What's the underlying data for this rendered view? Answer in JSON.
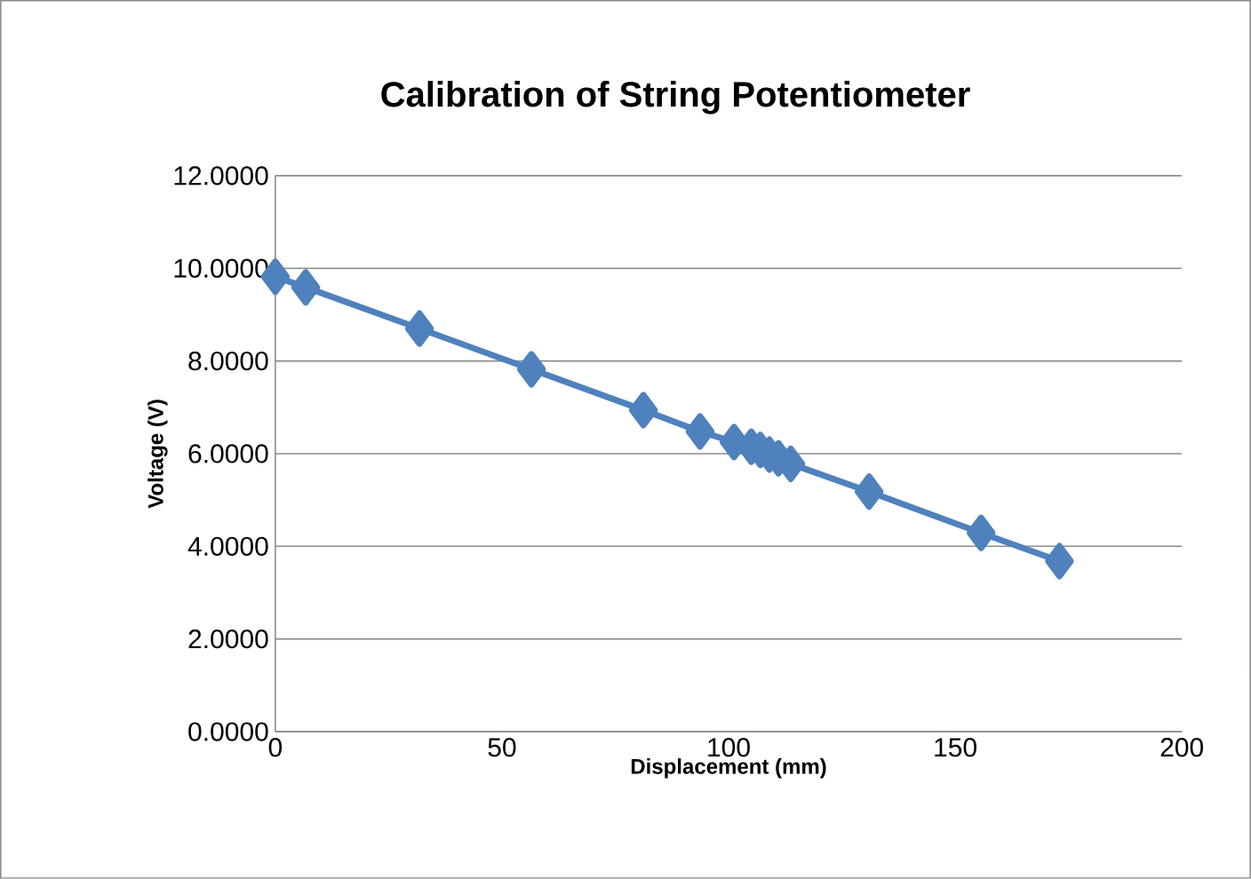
{
  "chart_data": {
    "type": "line",
    "title": "Calibration of String Potentiometer",
    "xlabel": "Displacement (mm)",
    "ylabel": "Voltage (V)",
    "x": [
      0,
      6.7,
      31.8,
      56.5,
      81.2,
      93.7,
      101.2,
      105,
      107,
      109,
      111,
      113.7,
      131,
      155.7,
      173
    ],
    "series": [
      {
        "color": "#4f81bd",
        "values": [
          9.82,
          9.59,
          8.7,
          7.82,
          6.94,
          6.48,
          6.25,
          6.15,
          6.08,
          5.98,
          5.9,
          5.78,
          5.18,
          4.29,
          3.68
        ]
      }
    ],
    "xlim": [
      0,
      200
    ],
    "xticks": [
      0,
      50,
      100,
      150,
      200
    ],
    "ylim": [
      0,
      12
    ],
    "yticks": [
      {
        "value": 0,
        "label": "0.0000"
      },
      {
        "value": 2,
        "label": "2.0000"
      },
      {
        "value": 4,
        "label": "4.0000"
      },
      {
        "value": 6,
        "label": "6.0000"
      },
      {
        "value": 8,
        "label": "8.0000"
      },
      {
        "value": 10,
        "label": "10.0000"
      },
      {
        "value": 12,
        "label": "12.0000"
      }
    ],
    "grid": "y",
    "marker": "diamond",
    "line_style": "solid"
  }
}
